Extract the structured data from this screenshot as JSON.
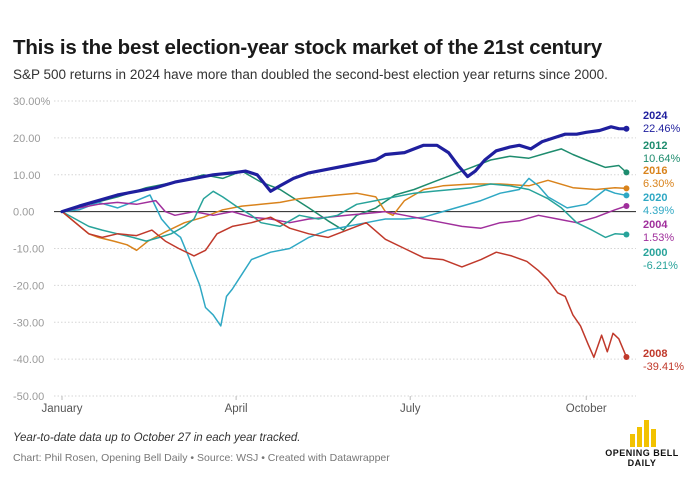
{
  "title": "This is the best election-year stock market of the 21st century",
  "subtitle": "S&P 500 returns in 2024 have more than doubled the second-best election year returns since 2000.",
  "note": "Year-to-date data up to October 27 in each year tracked.",
  "credit": "Chart: Phil Rosen, Opening Bell Daily • Source: WSJ • Created with Datawrapper",
  "logo": {
    "line1": "OPENING BELL",
    "line2": "DAILY",
    "color": "#f2c200"
  },
  "chart_data": {
    "type": "line",
    "title": "This is the best election-year stock market of the 21st century",
    "subtitle": "S&P 500 returns in 2024 have more than doubled the second-best election year returns since 2000.",
    "xlabel": "",
    "ylabel": "",
    "x_unit": "day of year",
    "xlim": [
      1,
      301
    ],
    "ylim": [
      -50,
      30
    ],
    "yticks": [
      30,
      20,
      10,
      0,
      -10,
      -20,
      -30,
      -40,
      -50
    ],
    "ytick_labels": [
      "30.00%",
      "20.00",
      "10.00",
      "0.00",
      "-10.00",
      "-20.00",
      "-30.00",
      "-40.00",
      "-50.00"
    ],
    "xticks": [
      1,
      92,
      183,
      275
    ],
    "xtick_labels": [
      "January",
      "April",
      "July",
      "October"
    ],
    "grid": true,
    "legend": "direct labels at right end of each line",
    "series": [
      {
        "name": "2024",
        "end_label": "22.46%",
        "color": "#1f1f9e",
        "width": 3.2,
        "points": [
          [
            1,
            0
          ],
          [
            10,
            1.5
          ],
          [
            20,
            3
          ],
          [
            30,
            4.5
          ],
          [
            40,
            5.5
          ],
          [
            50,
            6.5
          ],
          [
            60,
            8
          ],
          [
            70,
            9
          ],
          [
            80,
            10
          ],
          [
            90,
            10.5
          ],
          [
            97,
            11
          ],
          [
            103,
            10
          ],
          [
            110,
            5.5
          ],
          [
            115,
            7
          ],
          [
            122,
            9
          ],
          [
            130,
            10.5
          ],
          [
            140,
            11.5
          ],
          [
            150,
            12.5
          ],
          [
            160,
            13.5
          ],
          [
            165,
            14
          ],
          [
            170,
            15.5
          ],
          [
            180,
            16
          ],
          [
            185,
            17
          ],
          [
            190,
            18
          ],
          [
            197,
            18
          ],
          [
            203,
            16
          ],
          [
            208,
            12.5
          ],
          [
            213,
            9.5
          ],
          [
            217,
            11
          ],
          [
            222,
            14
          ],
          [
            228,
            16.5
          ],
          [
            235,
            17.5
          ],
          [
            240,
            18
          ],
          [
            246,
            17
          ],
          [
            252,
            19
          ],
          [
            258,
            20
          ],
          [
            264,
            21
          ],
          [
            270,
            21
          ],
          [
            275,
            21.5
          ],
          [
            282,
            22
          ],
          [
            288,
            23
          ],
          [
            292,
            22.5
          ],
          [
            296,
            22.46
          ]
        ]
      },
      {
        "name": "2012",
        "end_label": "10.64%",
        "color": "#1e8c6e",
        "width": 1.5,
        "points": [
          [
            1,
            0
          ],
          [
            15,
            2
          ],
          [
            30,
            4
          ],
          [
            45,
            6.5
          ],
          [
            60,
            8
          ],
          [
            75,
            10
          ],
          [
            85,
            9
          ],
          [
            95,
            11
          ],
          [
            105,
            8
          ],
          [
            115,
            6
          ],
          [
            130,
            1
          ],
          [
            140,
            -2.5
          ],
          [
            148,
            -5
          ],
          [
            155,
            -1
          ],
          [
            165,
            1
          ],
          [
            175,
            4.5
          ],
          [
            185,
            6
          ],
          [
            195,
            8
          ],
          [
            205,
            10
          ],
          [
            215,
            12
          ],
          [
            225,
            14
          ],
          [
            235,
            15
          ],
          [
            245,
            14.5
          ],
          [
            255,
            16
          ],
          [
            262,
            17
          ],
          [
            268,
            15.5
          ],
          [
            275,
            14
          ],
          [
            285,
            12
          ],
          [
            292,
            12.5
          ],
          [
            296,
            10.64
          ]
        ]
      },
      {
        "name": "2016",
        "end_label": "6.30%",
        "color": "#d9831c",
        "width": 1.5,
        "points": [
          [
            1,
            0
          ],
          [
            8,
            -3
          ],
          [
            15,
            -6
          ],
          [
            20,
            -7
          ],
          [
            28,
            -8
          ],
          [
            35,
            -9
          ],
          [
            40,
            -10.5
          ],
          [
            46,
            -8
          ],
          [
            55,
            -5.5
          ],
          [
            65,
            -3
          ],
          [
            75,
            -1.5
          ],
          [
            85,
            0.5
          ],
          [
            95,
            1.5
          ],
          [
            105,
            2
          ],
          [
            115,
            2.5
          ],
          [
            125,
            3.5
          ],
          [
            135,
            4
          ],
          [
            145,
            4.5
          ],
          [
            155,
            5
          ],
          [
            165,
            4
          ],
          [
            170,
            0
          ],
          [
            174,
            -1
          ],
          [
            180,
            3
          ],
          [
            190,
            6
          ],
          [
            200,
            7
          ],
          [
            215,
            7.5
          ],
          [
            230,
            7.5
          ],
          [
            245,
            7
          ],
          [
            255,
            8.5
          ],
          [
            268,
            6.5
          ],
          [
            280,
            6
          ],
          [
            290,
            6.5
          ],
          [
            296,
            6.3
          ]
        ]
      },
      {
        "name": "2020",
        "end_label": "4.39%",
        "color": "#2fa8c4",
        "width": 1.5,
        "points": [
          [
            1,
            0
          ],
          [
            10,
            0.5
          ],
          [
            20,
            2.5
          ],
          [
            30,
            1
          ],
          [
            40,
            3
          ],
          [
            47,
            4.5
          ],
          [
            53,
            -2
          ],
          [
            58,
            -5
          ],
          [
            63,
            -7
          ],
          [
            67,
            -12
          ],
          [
            70,
            -16
          ],
          [
            73,
            -20
          ],
          [
            76,
            -26
          ],
          [
            80,
            -28
          ],
          [
            84,
            -31
          ],
          [
            87,
            -23
          ],
          [
            90,
            -21
          ],
          [
            95,
            -17
          ],
          [
            100,
            -13
          ],
          [
            110,
            -11
          ],
          [
            120,
            -10
          ],
          [
            130,
            -7
          ],
          [
            140,
            -5
          ],
          [
            150,
            -4
          ],
          [
            160,
            -3
          ],
          [
            170,
            -2
          ],
          [
            180,
            -2
          ],
          [
            190,
            -1.5
          ],
          [
            200,
            0
          ],
          [
            210,
            1.5
          ],
          [
            220,
            3
          ],
          [
            230,
            5
          ],
          [
            240,
            6
          ],
          [
            245,
            9
          ],
          [
            250,
            7
          ],
          [
            255,
            4
          ],
          [
            265,
            1
          ],
          [
            275,
            2
          ],
          [
            285,
            6
          ],
          [
            290,
            5
          ],
          [
            296,
            4.39
          ]
        ]
      },
      {
        "name": "2004",
        "end_label": "1.53%",
        "color": "#a02f9c",
        "width": 1.5,
        "points": [
          [
            1,
            0
          ],
          [
            10,
            1
          ],
          [
            20,
            2
          ],
          [
            30,
            2.5
          ],
          [
            40,
            2
          ],
          [
            50,
            3
          ],
          [
            55,
            0
          ],
          [
            60,
            -1
          ],
          [
            70,
            0
          ],
          [
            80,
            -1
          ],
          [
            90,
            0
          ],
          [
            100,
            -1.5
          ],
          [
            110,
            -2
          ],
          [
            120,
            -3
          ],
          [
            130,
            -2
          ],
          [
            140,
            -1.5
          ],
          [
            150,
            -1
          ],
          [
            160,
            -0.5
          ],
          [
            170,
            0
          ],
          [
            180,
            -1
          ],
          [
            190,
            -2
          ],
          [
            200,
            -3
          ],
          [
            210,
            -4
          ],
          [
            220,
            -4.5
          ],
          [
            230,
            -3
          ],
          [
            240,
            -2.5
          ],
          [
            250,
            -1
          ],
          [
            260,
            -2
          ],
          [
            270,
            -3
          ],
          [
            280,
            -1.5
          ],
          [
            290,
            0.5
          ],
          [
            296,
            1.53
          ]
        ]
      },
      {
        "name": "2000",
        "end_label": "-6.21%",
        "color": "#28a39a",
        "width": 1.5,
        "points": [
          [
            1,
            0
          ],
          [
            8,
            -2
          ],
          [
            15,
            -4
          ],
          [
            22,
            -5
          ],
          [
            30,
            -6
          ],
          [
            38,
            -7
          ],
          [
            45,
            -8
          ],
          [
            52,
            -7
          ],
          [
            58,
            -6
          ],
          [
            65,
            -4
          ],
          [
            70,
            -2
          ],
          [
            75,
            3.5
          ],
          [
            80,
            5.5
          ],
          [
            85,
            4
          ],
          [
            92,
            1.5
          ],
          [
            100,
            -1
          ],
          [
            105,
            -3
          ],
          [
            115,
            -4
          ],
          [
            125,
            -1
          ],
          [
            135,
            -2
          ],
          [
            145,
            -1
          ],
          [
            155,
            2
          ],
          [
            165,
            3
          ],
          [
            175,
            4
          ],
          [
            185,
            5
          ],
          [
            195,
            5.5
          ],
          [
            205,
            6
          ],
          [
            215,
            6.5
          ],
          [
            225,
            7.5
          ],
          [
            235,
            7
          ],
          [
            245,
            6
          ],
          [
            255,
            3.5
          ],
          [
            262,
            1
          ],
          [
            270,
            -3
          ],
          [
            278,
            -5
          ],
          [
            285,
            -7
          ],
          [
            290,
            -6
          ],
          [
            296,
            -6.21
          ]
        ]
      },
      {
        "name": "2008",
        "end_label": "-39.41%",
        "color": "#c0392b",
        "width": 1.5,
        "points": [
          [
            1,
            0
          ],
          [
            8,
            -3
          ],
          [
            15,
            -6
          ],
          [
            22,
            -7
          ],
          [
            30,
            -6
          ],
          [
            40,
            -6.5
          ],
          [
            48,
            -5
          ],
          [
            55,
            -8
          ],
          [
            62,
            -10
          ],
          [
            70,
            -12
          ],
          [
            76,
            -10.5
          ],
          [
            82,
            -6
          ],
          [
            90,
            -4
          ],
          [
            100,
            -3
          ],
          [
            110,
            -1.5
          ],
          [
            120,
            -4.5
          ],
          [
            130,
            -6
          ],
          [
            140,
            -7
          ],
          [
            150,
            -5
          ],
          [
            160,
            -3
          ],
          [
            170,
            -7.5
          ],
          [
            180,
            -10
          ],
          [
            190,
            -12.5
          ],
          [
            200,
            -13
          ],
          [
            210,
            -15
          ],
          [
            220,
            -13
          ],
          [
            228,
            -11
          ],
          [
            236,
            -12
          ],
          [
            244,
            -13.5
          ],
          [
            250,
            -16
          ],
          [
            255,
            -18.5
          ],
          [
            260,
            -22
          ],
          [
            264,
            -23
          ],
          [
            268,
            -28
          ],
          [
            272,
            -31
          ],
          [
            276,
            -36
          ],
          [
            279,
            -39.5
          ],
          [
            283,
            -33.5
          ],
          [
            286,
            -38
          ],
          [
            289,
            -33
          ],
          [
            292,
            -34.5
          ],
          [
            296,
            -39.41
          ]
        ]
      }
    ]
  }
}
